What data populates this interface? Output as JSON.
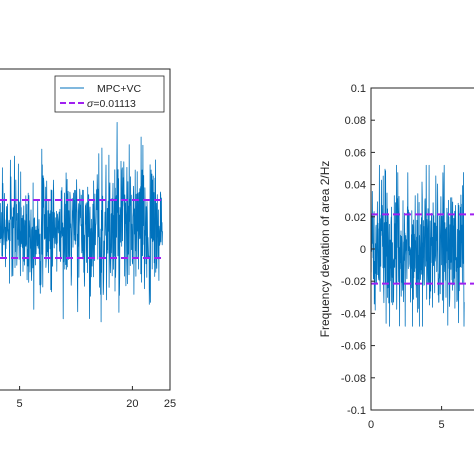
{
  "chart_data": [
    {
      "type": "line",
      "xlabel": "",
      "ylabel": "",
      "xlim": [
        0,
        25
      ],
      "x_ticks": [
        "5",
        "20",
        "25"
      ],
      "x_tick_values": [
        5,
        20,
        25
      ],
      "time_span": [
        0,
        24
      ],
      "series": [
        {
          "name": "MPC+VC",
          "color": "#0072BD",
          "type": "noisy-line",
          "mean": 0,
          "std": 0.01113
        },
        {
          "name": "σ=0.01113",
          "color": "#A020F0",
          "type": "dashed-hline",
          "y": [
            0.01113,
            -0.01113
          ]
        }
      ],
      "legend": {
        "placement": "top-right",
        "entries": [
          {
            "prefix": "",
            "rest": "MPC+VC"
          },
          {
            "prefix": "σ",
            "rest": "=0.01113"
          }
        ]
      }
    },
    {
      "type": "line",
      "xlabel": "",
      "ylabel": "Frequency deviation of area 2/Hz",
      "xlim": [
        0,
        25
      ],
      "ylim": [
        -0.1,
        0.1
      ],
      "y_ticks": [
        "0.1",
        "0.08",
        "0.06",
        "0.04",
        "0.02",
        "0",
        "-0.02",
        "-0.04",
        "-0.06",
        "-0.08",
        "-0.1"
      ],
      "y_tick_values": [
        0.1,
        0.08,
        0.06,
        0.04,
        0.02,
        0,
        -0.02,
        -0.04,
        -0.06,
        -0.08,
        -0.1
      ],
      "x_ticks": [
        "0",
        "5"
      ],
      "x_tick_values": [
        0,
        5
      ],
      "series": [
        {
          "name": "",
          "color": "#0072BD",
          "type": "noisy-line",
          "mean": 0,
          "std": 0.0215
        },
        {
          "name": "",
          "color": "#A020F0",
          "type": "dashed-hline",
          "y": [
            0.0215,
            -0.0215
          ]
        }
      ]
    }
  ]
}
